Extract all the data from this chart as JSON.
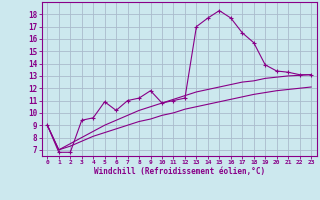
{
  "xlabel": "Windchill (Refroidissement éolien,°C)",
  "bg_color": "#cce8ee",
  "grid_color": "#aabbcc",
  "line_color": "#880088",
  "spine_color": "#880088",
  "xlim": [
    -0.5,
    23.5
  ],
  "ylim": [
    6.5,
    19.0
  ],
  "yticks": [
    7,
    8,
    9,
    10,
    11,
    12,
    13,
    14,
    15,
    16,
    17,
    18
  ],
  "xticks": [
    0,
    1,
    2,
    3,
    4,
    5,
    6,
    7,
    8,
    9,
    10,
    11,
    12,
    13,
    14,
    15,
    16,
    17,
    18,
    19,
    20,
    21,
    22,
    23
  ],
  "line1_x": [
    0,
    1,
    2,
    3,
    4,
    5,
    6,
    7,
    8,
    9,
    10,
    11,
    12,
    13,
    14,
    15,
    16,
    17,
    18,
    19,
    20,
    21,
    22,
    23
  ],
  "line1_y": [
    9.0,
    6.8,
    6.8,
    9.4,
    9.6,
    10.9,
    10.2,
    11.0,
    11.2,
    11.8,
    10.8,
    11.0,
    11.2,
    17.0,
    17.7,
    18.3,
    17.7,
    16.5,
    15.7,
    13.9,
    13.4,
    13.3,
    13.1,
    13.1
  ],
  "line2_x": [
    0,
    1,
    2,
    3,
    4,
    5,
    6,
    7,
    8,
    9,
    10,
    11,
    12,
    13,
    14,
    15,
    16,
    17,
    18,
    19,
    20,
    21,
    22,
    23
  ],
  "line2_y": [
    9.0,
    7.0,
    7.5,
    8.0,
    8.5,
    9.0,
    9.4,
    9.8,
    10.2,
    10.5,
    10.8,
    11.1,
    11.4,
    11.7,
    11.9,
    12.1,
    12.3,
    12.5,
    12.6,
    12.8,
    12.9,
    13.0,
    13.05,
    13.1
  ],
  "line3_x": [
    0,
    1,
    2,
    3,
    4,
    5,
    6,
    7,
    8,
    9,
    10,
    11,
    12,
    13,
    14,
    15,
    16,
    17,
    18,
    19,
    20,
    21,
    22,
    23
  ],
  "line3_y": [
    9.0,
    7.0,
    7.3,
    7.7,
    8.1,
    8.4,
    8.7,
    9.0,
    9.3,
    9.5,
    9.8,
    10.0,
    10.3,
    10.5,
    10.7,
    10.9,
    11.1,
    11.3,
    11.5,
    11.65,
    11.8,
    11.9,
    12.0,
    12.1
  ]
}
